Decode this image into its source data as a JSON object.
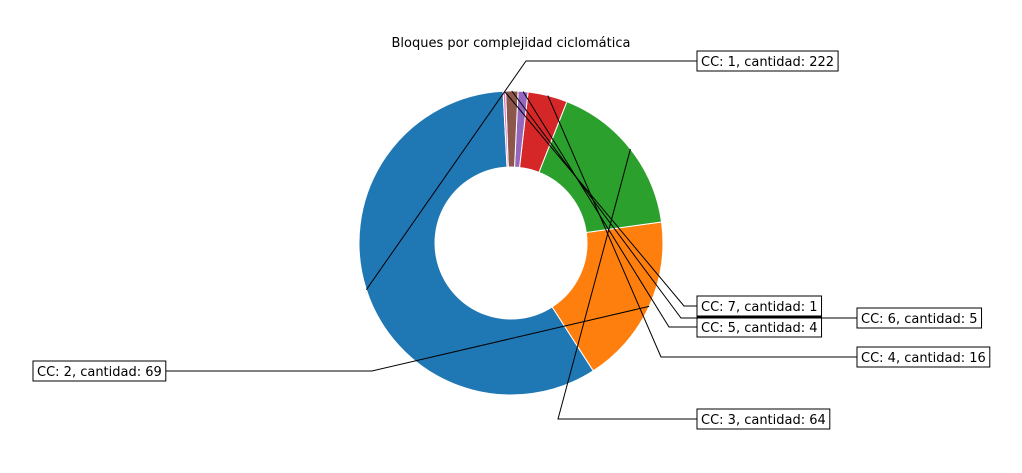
{
  "chart_data": {
    "type": "pie",
    "style": "donut",
    "title": "Bloques por complejidad ciclomática",
    "slices": [
      {
        "label": "CC: 1, cantidad: 222",
        "value": 222,
        "color": "#1f77b4"
      },
      {
        "label": "CC: 2, cantidad: 69",
        "value": 69,
        "color": "#ff7f0e"
      },
      {
        "label": "CC: 3, cantidad: 64",
        "value": 64,
        "color": "#2ca02c"
      },
      {
        "label": "CC: 4, cantidad: 16",
        "value": 16,
        "color": "#d62728"
      },
      {
        "label": "CC: 5, cantidad: 4",
        "value": 4,
        "color": "#9467bd"
      },
      {
        "label": "CC: 6, cantidad: 5",
        "value": 5,
        "color": "#8c564b"
      },
      {
        "label": "CC: 7, cantidad: 1",
        "value": 1,
        "color": "#e377c2"
      }
    ]
  }
}
